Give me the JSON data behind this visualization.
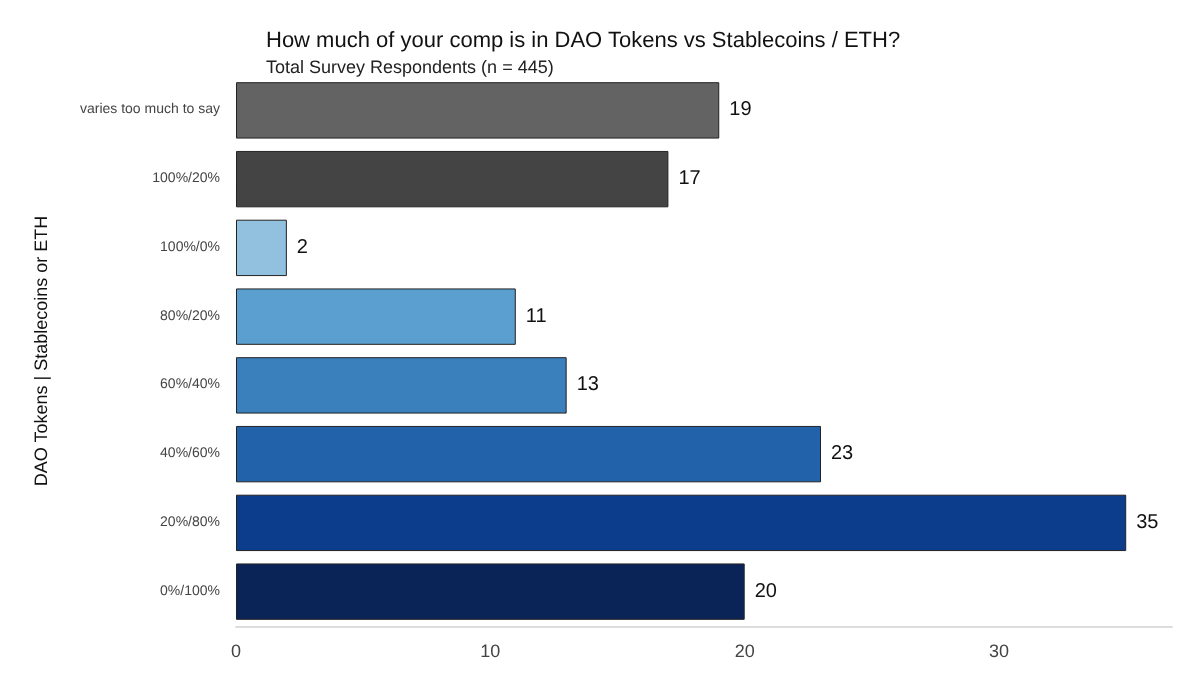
{
  "chart_data": {
    "type": "bar",
    "orientation": "horizontal",
    "title": "How much of your comp is in DAO Tokens vs Stablecoins / ETH?",
    "subtitle": "Total Survey Respondents (n = 445)",
    "ylabel": "DAO Tokens | Stablecoins or ETH",
    "categories": [
      "varies too much to say",
      "100%/20%",
      "100%/0%",
      "80%/20%",
      "60%/40%",
      "40%/60%",
      "20%/80%",
      "0%/100%"
    ],
    "values": [
      19,
      17,
      2,
      11,
      13,
      23,
      35,
      20
    ],
    "colors": [
      "#636363",
      "#444444",
      "#92c0df",
      "#5a9fcf",
      "#3a80bd",
      "#2262aa",
      "#0c3d8c",
      "#0b2458"
    ],
    "xlim": [
      0,
      36.8
    ],
    "xticks": [
      0,
      10,
      20,
      30
    ],
    "grid": false,
    "data_labels": true
  }
}
